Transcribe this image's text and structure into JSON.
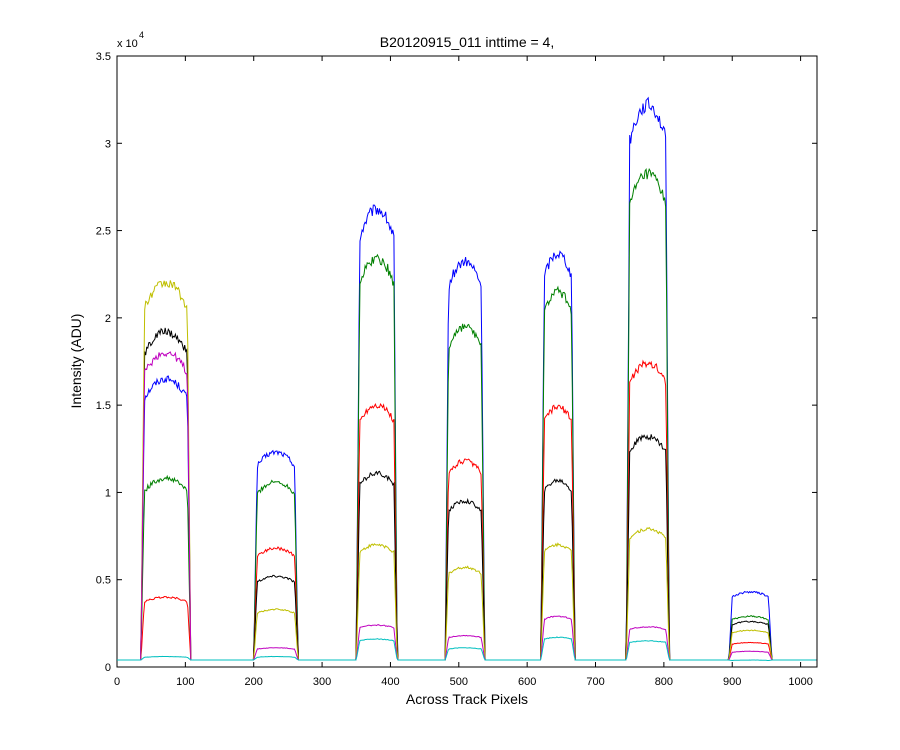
{
  "chart_data": {
    "type": "line",
    "title": "B20120915_011 inttime = 4,",
    "xlabel": "Across Track Pixels",
    "ylabel": "Intensity (ADU)",
    "y_exponent_label": "x 10",
    "y_exponent_power": "4",
    "xlim": [
      0,
      1024
    ],
    "ylim": [
      0,
      35000
    ],
    "xticks": [
      0,
      100,
      200,
      300,
      400,
      500,
      600,
      700,
      800,
      900,
      1000
    ],
    "yticks": [
      0,
      5000,
      10000,
      15000,
      20000,
      25000,
      30000,
      35000
    ],
    "xtick_labels": [
      "0",
      "100",
      "200",
      "300",
      "400",
      "500",
      "600",
      "700",
      "800",
      "900",
      "1000"
    ],
    "ytick_labels": [
      "0",
      "0.5",
      "1",
      "1.5",
      "2",
      "2.5",
      "3",
      "3.5"
    ],
    "grid": false,
    "legend": "none",
    "baseline": 400,
    "segments_x": [
      [
        35,
        108
      ],
      [
        200,
        265
      ],
      [
        350,
        410
      ],
      [
        480,
        538
      ],
      [
        620,
        670
      ],
      [
        745,
        808
      ],
      [
        895,
        958
      ]
    ],
    "series": [
      {
        "color": "#0000ff",
        "segment_levels": [
          16500,
          12300,
          26200,
          23200,
          23700,
          32200,
          4300
        ]
      },
      {
        "color": "#008000",
        "segment_levels": [
          10800,
          10600,
          23400,
          19500,
          21500,
          28200,
          2900
        ]
      },
      {
        "color": "#ff0000",
        "segment_levels": [
          4000,
          6800,
          15000,
          11800,
          14900,
          17400,
          1400
        ]
      },
      {
        "color": "#000000",
        "segment_levels": [
          19200,
          5200,
          11100,
          9500,
          10700,
          13200,
          2600
        ]
      },
      {
        "color": "#bfbf00",
        "segment_levels": [
          22000,
          3300,
          7000,
          5700,
          7000,
          7900,
          2100
        ]
      },
      {
        "color": "#bf00bf",
        "segment_levels": [
          18000,
          1100,
          2400,
          1800,
          2900,
          2300,
          900
        ]
      },
      {
        "color": "#00bfbf",
        "segment_levels": [
          600,
          600,
          1600,
          1100,
          1700,
          1500,
          400
        ]
      }
    ]
  }
}
